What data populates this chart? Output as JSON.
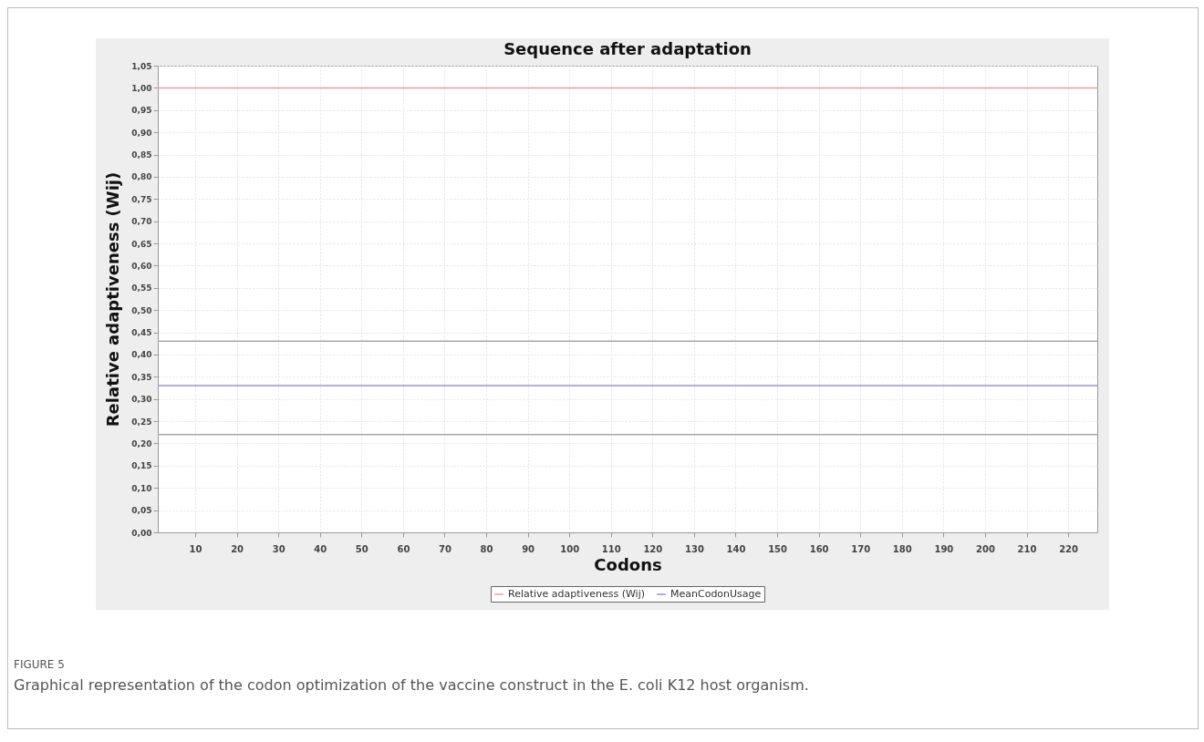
{
  "chart_data": {
    "type": "line",
    "title": "Sequence after adaptation",
    "xlabel": "Codons",
    "ylabel": "Relative adaptiveness (Wij)",
    "x": [
      1,
      227
    ],
    "series": [
      {
        "name": "Relative adaptiveness (Wij)",
        "color": "#e8a0a0",
        "values": [
          1.0,
          1.0
        ]
      },
      {
        "name": "MeanCodonUsage",
        "color": "#9a94c8",
        "values": [
          0.33,
          0.33
        ]
      },
      {
        "color": "#a8a8a8",
        "values": [
          0.43,
          0.43
        ]
      },
      {
        "color": "#a8a8a8",
        "values": [
          0.22,
          0.22
        ]
      }
    ],
    "xlim": [
      1,
      227
    ],
    "xticks": [
      10,
      20,
      30,
      40,
      50,
      60,
      70,
      80,
      90,
      100,
      110,
      120,
      130,
      140,
      150,
      160,
      170,
      180,
      190,
      200,
      210,
      220
    ],
    "ylim": [
      0,
      1.05
    ],
    "yticks": [
      {
        "value": 0,
        "label": "0,00"
      },
      {
        "value": 0.05,
        "label": "0,05"
      },
      {
        "value": 0.1,
        "label": "0,10"
      },
      {
        "value": 0.15,
        "label": "0,15"
      },
      {
        "value": 0.2,
        "label": "0,20"
      },
      {
        "value": 0.25,
        "label": "0,25"
      },
      {
        "value": 0.3,
        "label": "0,30"
      },
      {
        "value": 0.35,
        "label": "0,35"
      },
      {
        "value": 0.4,
        "label": "0,40"
      },
      {
        "value": 0.45,
        "label": "0,45"
      },
      {
        "value": 0.5,
        "label": "0,50"
      },
      {
        "value": 0.55,
        "label": "0,55"
      },
      {
        "value": 0.6,
        "label": "0,60"
      },
      {
        "value": 0.65,
        "label": "0,65"
      },
      {
        "value": 0.7,
        "label": "0,70"
      },
      {
        "value": 0.75,
        "label": "0,75"
      },
      {
        "value": 0.8,
        "label": "0,80"
      },
      {
        "value": 0.85,
        "label": "0,85"
      },
      {
        "value": 0.9,
        "label": "0,90"
      },
      {
        "value": 0.95,
        "label": "0,95"
      },
      {
        "value": 1.0,
        "label": "1,00"
      },
      {
        "value": 1.05,
        "label": "1,05"
      }
    ],
    "grid": true,
    "legend": "bottom",
    "annotations": [
      "FIGURE 5",
      "Graphical representation of the codon optimization of the vaccine construct in the E. coli K12 host organism."
    ]
  }
}
